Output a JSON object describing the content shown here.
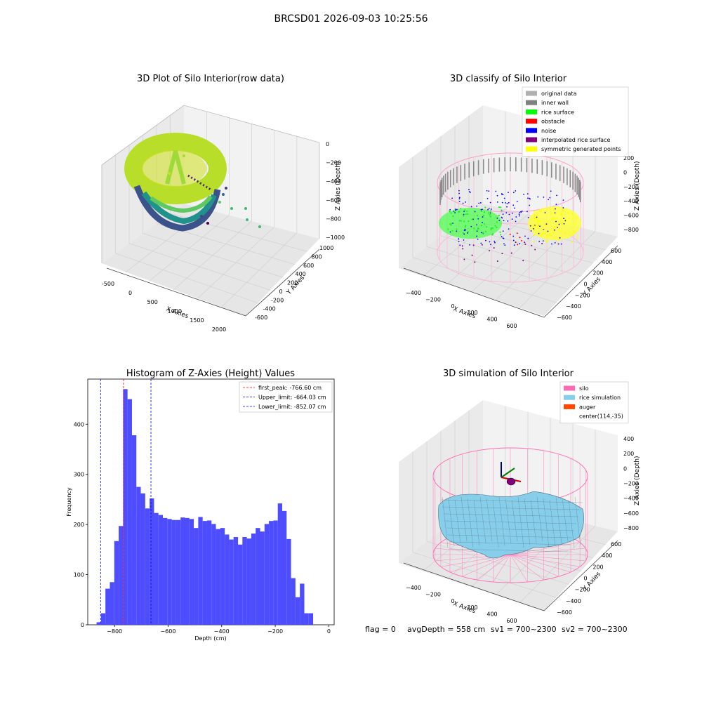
{
  "suptitle": "BRCSD01 2026-09-03 10:25:56",
  "footer": {
    "flag": "flag = 0",
    "avg": "avgDepth = 558 cm",
    "sv1": "sv1 = 700~2300",
    "sv2": "sv2 = 700~2300"
  },
  "panel1": {
    "title": "3D Plot of Silo Interior(row data)",
    "xlabel": "X Axies",
    "ylabel": "Y Axies",
    "zlabel": "Z Axies (Depth)",
    "xticks": [
      "-500",
      "0",
      "500",
      "1000",
      "1500",
      "2000"
    ],
    "yticks": [
      "-600",
      "-400",
      "-200",
      "0",
      "200",
      "400",
      "600",
      "800",
      "1000"
    ],
    "zticks": [
      "0",
      "−200",
      "−400",
      "−600",
      "−800",
      "−1000"
    ]
  },
  "panel2": {
    "title": "3D classify of Silo Interior",
    "xlabel": "X Axies",
    "ylabel": "Y Axies",
    "zlabel": "Z Axies (Depth)",
    "xticks": [
      "−400",
      "−200",
      "0",
      "200",
      "400",
      "600"
    ],
    "yticks": [
      "−600",
      "−400",
      "−200",
      "0",
      "200",
      "400",
      "600"
    ],
    "zticks": [
      "200",
      "0",
      "−200",
      "−400",
      "−600",
      "−800"
    ],
    "legend": [
      {
        "label": "original data",
        "color": "#b0b0b0"
      },
      {
        "label": "inner wall",
        "color": "#808080"
      },
      {
        "label": "rice surface",
        "color": "#00ff00"
      },
      {
        "label": "obstacle",
        "color": "#ff0000"
      },
      {
        "label": "noise",
        "color": "#0000ff"
      },
      {
        "label": "interpolated rice surface",
        "color": "#800080"
      },
      {
        "label": "symmetric generated points",
        "color": "#ffff00"
      }
    ]
  },
  "panel4": {
    "title": "3D simulation of Silo Interior",
    "xlabel": "X Axies",
    "ylabel": "Y Axies",
    "zlabel": "Z Axies (Depth)",
    "xticks": [
      "−400",
      "−200",
      "0",
      "200",
      "400",
      "600"
    ],
    "yticks": [
      "−600",
      "−400",
      "−200",
      "0",
      "200",
      "400",
      "600"
    ],
    "zticks": [
      "400",
      "200",
      "0",
      "−200",
      "−400",
      "−600",
      "−800"
    ],
    "legend": [
      {
        "label": "silo",
        "color": "#ff69b4"
      },
      {
        "label": "rice simulation",
        "color": "#87ceeb"
      },
      {
        "label": "auger",
        "color": "#ff4500"
      },
      {
        "label": "center(114,-35)",
        "color": ""
      }
    ]
  },
  "chart_data": {
    "type": "bar",
    "title": "Histogram of Z-Axies (Height) Values",
    "xlabel": "Depth (cm)",
    "ylabel": "Frequency",
    "xlim": [
      -900,
      20
    ],
    "ylim": [
      0,
      490
    ],
    "bin_start": -867,
    "bin_width": 16.5,
    "values": [
      5,
      23,
      72,
      85,
      167,
      197,
      470,
      450,
      378,
      275,
      262,
      232,
      252,
      223,
      219,
      213,
      211,
      209,
      209,
      214,
      213,
      211,
      193,
      215,
      207,
      208,
      201,
      191,
      193,
      180,
      170,
      175,
      160,
      175,
      172,
      182,
      193,
      186,
      201,
      207,
      208,
      242,
      227,
      171,
      93,
      55,
      82,
      23,
      23
    ],
    "xticks": [
      -800,
      -600,
      -400,
      -200,
      0
    ],
    "yticks": [
      0,
      100,
      200,
      300,
      400
    ],
    "bar_color": "#4d4dff",
    "lines": [
      {
        "label": "first_peak: -766.60 cm",
        "x": -766.6,
        "color": "#ff0000"
      },
      {
        "label": "Upper_limit: -664.03 cm",
        "x": -664.03,
        "color": "#0000ff"
      },
      {
        "label": "Lower_limit: -852.07 cm",
        "x": -852.07,
        "color": "#0000ff"
      }
    ]
  }
}
